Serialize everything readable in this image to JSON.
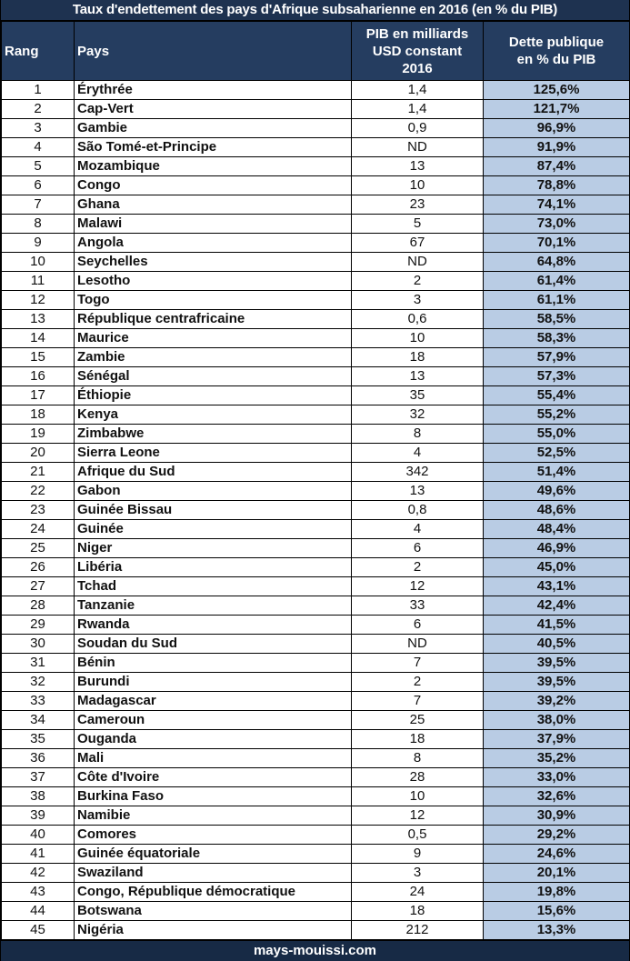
{
  "title": "Taux d'endettement  des pays d'Afrique subsaharienne en 2016 (en % du PIB)",
  "headers": {
    "rank": "Rang",
    "country": "Pays",
    "gdp_line1": "PIB en milliards",
    "gdp_line2": "USD constant",
    "gdp_line3": "2016",
    "debt_line1": "Dette publique",
    "debt_line2": "en % du PIB"
  },
  "colors": {
    "title_bg": "#1e3250",
    "header_bg": "#253d60",
    "debt_bg": "#b9cce4",
    "footer_bg": "#172a45"
  },
  "rows": [
    {
      "rank": "1",
      "country": "Érythrée",
      "gdp": "1,4",
      "debt": "125,6%"
    },
    {
      "rank": "2",
      "country": "Cap-Vert",
      "gdp": "1,4",
      "debt": "121,7%"
    },
    {
      "rank": "3",
      "country": "Gambie",
      "gdp": "0,9",
      "debt": "96,9%"
    },
    {
      "rank": "4",
      "country": "São Tomé-et-Principe",
      "gdp": "ND",
      "debt": "91,9%"
    },
    {
      "rank": "5",
      "country": "Mozambique",
      "gdp": "13",
      "debt": "87,4%"
    },
    {
      "rank": "6",
      "country": "Congo",
      "gdp": "10",
      "debt": "78,8%"
    },
    {
      "rank": "7",
      "country": "Ghana",
      "gdp": "23",
      "debt": "74,1%"
    },
    {
      "rank": "8",
      "country": "Malawi",
      "gdp": "5",
      "debt": "73,0%"
    },
    {
      "rank": "9",
      "country": "Angola",
      "gdp": "67",
      "debt": "70,1%"
    },
    {
      "rank": "10",
      "country": "Seychelles",
      "gdp": "ND",
      "debt": "64,8%"
    },
    {
      "rank": "11",
      "country": "Lesotho",
      "gdp": "2",
      "debt": "61,4%"
    },
    {
      "rank": "12",
      "country": "Togo",
      "gdp": "3",
      "debt": "61,1%"
    },
    {
      "rank": "13",
      "country": "République centrafricaine",
      "gdp": "0,6",
      "debt": "58,5%"
    },
    {
      "rank": "14",
      "country": "Maurice",
      "gdp": "10",
      "debt": "58,3%"
    },
    {
      "rank": "15",
      "country": "Zambie",
      "gdp": "18",
      "debt": "57,9%"
    },
    {
      "rank": "16",
      "country": "Sénégal",
      "gdp": "13",
      "debt": "57,3%"
    },
    {
      "rank": "17",
      "country": "Éthiopie",
      "gdp": "35",
      "debt": "55,4%"
    },
    {
      "rank": "18",
      "country": "Kenya",
      "gdp": "32",
      "debt": "55,2%"
    },
    {
      "rank": "19",
      "country": "Zimbabwe",
      "gdp": "8",
      "debt": "55,0%"
    },
    {
      "rank": "20",
      "country": "Sierra Leone",
      "gdp": "4",
      "debt": "52,5%"
    },
    {
      "rank": "21",
      "country": "Afrique du Sud",
      "gdp": "342",
      "debt": "51,4%"
    },
    {
      "rank": "22",
      "country": "Gabon",
      "gdp": "13",
      "debt": "49,6%"
    },
    {
      "rank": "23",
      "country": "Guinée Bissau",
      "gdp": "0,8",
      "debt": "48,6%"
    },
    {
      "rank": "24",
      "country": "Guinée",
      "gdp": "4",
      "debt": "48,4%"
    },
    {
      "rank": "25",
      "country": "Niger",
      "gdp": "6",
      "debt": "46,9%"
    },
    {
      "rank": "26",
      "country": "Libéria",
      "gdp": "2",
      "debt": "45,0%"
    },
    {
      "rank": "27",
      "country": "Tchad",
      "gdp": "12",
      "debt": "43,1%"
    },
    {
      "rank": "28",
      "country": "Tanzanie",
      "gdp": "33",
      "debt": "42,4%"
    },
    {
      "rank": "29",
      "country": "Rwanda",
      "gdp": "6",
      "debt": "41,5%"
    },
    {
      "rank": "30",
      "country": "Soudan du Sud",
      "gdp": "ND",
      "debt": "40,5%"
    },
    {
      "rank": "31",
      "country": "Bénin",
      "gdp": "7",
      "debt": "39,5%"
    },
    {
      "rank": "32",
      "country": "Burundi",
      "gdp": "2",
      "debt": "39,5%"
    },
    {
      "rank": "33",
      "country": "Madagascar",
      "gdp": "7",
      "debt": "39,2%"
    },
    {
      "rank": "34",
      "country": "Cameroun",
      "gdp": "25",
      "debt": "38,0%"
    },
    {
      "rank": "35",
      "country": "Ouganda",
      "gdp": "18",
      "debt": "37,9%"
    },
    {
      "rank": "36",
      "country": "Mali",
      "gdp": "8",
      "debt": "35,2%"
    },
    {
      "rank": "37",
      "country": "Côte d'Ivoire",
      "gdp": "28",
      "debt": "33,0%"
    },
    {
      "rank": "38",
      "country": "Burkina Faso",
      "gdp": "10",
      "debt": "32,6%"
    },
    {
      "rank": "39",
      "country": "Namibie",
      "gdp": "12",
      "debt": "30,9%"
    },
    {
      "rank": "40",
      "country": "Comores",
      "gdp": "0,5",
      "debt": "29,2%"
    },
    {
      "rank": "41",
      "country": "Guinée équatoriale",
      "gdp": "9",
      "debt": "24,6%"
    },
    {
      "rank": "42",
      "country": "Swaziland",
      "gdp": "3",
      "debt": "20,1%"
    },
    {
      "rank": "43",
      "country": "Congo, République démocratique",
      "gdp": "24",
      "debt": "19,8%"
    },
    {
      "rank": "44",
      "country": "Botswana",
      "gdp": "18",
      "debt": "15,6%"
    },
    {
      "rank": "45",
      "country": "Nigéria",
      "gdp": "212",
      "debt": "13,3%"
    }
  ],
  "footer": "mays-mouissi.com"
}
